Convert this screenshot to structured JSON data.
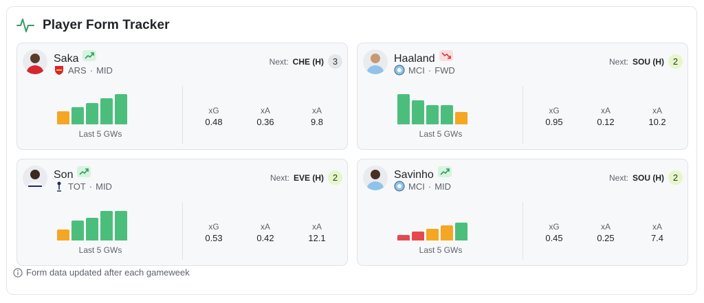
{
  "header": {
    "title": "Player Form Tracker"
  },
  "labels": {
    "next": "Next:",
    "bars_caption": "Last 5 GWs"
  },
  "colors": {
    "green": "#4cbe7c",
    "orange": "#f5a623",
    "red": "#e5484d"
  },
  "players": [
    {
      "name": "Saka",
      "trend": "up",
      "team": "ARS",
      "position": "MID",
      "next_fixture": "CHE (H)",
      "difficulty": "3",
      "form": [
        3,
        4,
        5,
        6,
        7
      ],
      "form_colors": [
        "orange",
        "green",
        "green",
        "green",
        "green"
      ],
      "stats": [
        {
          "label": "xG",
          "value": "0.48"
        },
        {
          "label": "xA",
          "value": "0.36"
        },
        {
          "label": "xA",
          "value": "9.8"
        }
      ]
    },
    {
      "name": "Haaland",
      "trend": "down",
      "team": "MCI",
      "position": "FWD",
      "next_fixture": "SOU (H)",
      "difficulty": "2",
      "form": [
        7,
        5.6,
        4.4,
        4.4,
        2.8
      ],
      "form_colors": [
        "green",
        "green",
        "green",
        "green",
        "orange"
      ],
      "stats": [
        {
          "label": "xG",
          "value": "0.95"
        },
        {
          "label": "xA",
          "value": "0.12"
        },
        {
          "label": "xA",
          "value": "10.2"
        }
      ]
    },
    {
      "name": "Son",
      "trend": "up",
      "team": "TOT",
      "position": "MID",
      "next_fixture": "EVE (H)",
      "difficulty": "2",
      "form": [
        2.6,
        4.6,
        5.3,
        6.8,
        6.8
      ],
      "form_colors": [
        "orange",
        "green",
        "green",
        "green",
        "green"
      ],
      "stats": [
        {
          "label": "xG",
          "value": "0.53"
        },
        {
          "label": "xA",
          "value": "0.42"
        },
        {
          "label": "xA",
          "value": "12.1"
        }
      ]
    },
    {
      "name": "Savinho",
      "trend": "up",
      "team": "MCI",
      "position": "MID",
      "next_fixture": "SOU (H)",
      "difficulty": "2",
      "form": [
        1.2,
        2,
        2.7,
        3.5,
        4.2
      ],
      "form_colors": [
        "red",
        "red",
        "orange",
        "orange",
        "green"
      ],
      "stats": [
        {
          "label": "xG",
          "value": "0.45"
        },
        {
          "label": "xA",
          "value": "0.25"
        },
        {
          "label": "xA",
          "value": "7.4"
        }
      ]
    }
  ],
  "footer": {
    "text": "Form data updated after each gameweek"
  }
}
